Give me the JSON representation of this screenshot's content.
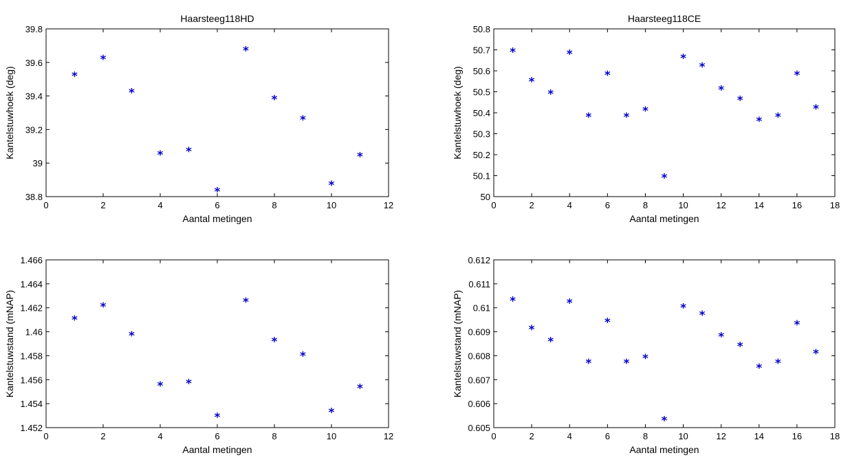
{
  "chart_data": [
    {
      "type": "scatter",
      "title": "Haarsteeg118HD",
      "xlabel": "Aantal metingen",
      "ylabel": "Kantelstuwhoek (deg)",
      "xlim": [
        0,
        12
      ],
      "ylim": [
        38.8,
        39.8
      ],
      "xticks": [
        0,
        2,
        4,
        6,
        8,
        10,
        12
      ],
      "yticks": [
        38.8,
        39,
        39.2,
        39.4,
        39.6,
        39.8
      ],
      "xtick_labels": [
        "0",
        "2",
        "4",
        "6",
        "8",
        "10",
        "12"
      ],
      "ytick_labels": [
        "38.8",
        "39",
        "39.2",
        "39.4",
        "39.6",
        "39.8"
      ],
      "marker": "*",
      "color": "#0000cc",
      "x": [
        1,
        2,
        3,
        4,
        5,
        6,
        7,
        8,
        9,
        10,
        11
      ],
      "y": [
        39.52,
        39.62,
        39.42,
        39.05,
        39.07,
        38.83,
        39.67,
        39.38,
        39.26,
        38.87,
        39.04
      ]
    },
    {
      "type": "scatter",
      "title": "Haarsteeg118CE",
      "xlabel": "Aantal metingen",
      "ylabel": "Kantelstuwhoek (deg)",
      "xlim": [
        0,
        18
      ],
      "ylim": [
        50,
        50.8
      ],
      "xticks": [
        0,
        2,
        4,
        6,
        8,
        10,
        12,
        14,
        16,
        18
      ],
      "yticks": [
        50,
        50.1,
        50.2,
        50.3,
        50.4,
        50.5,
        50.6,
        50.7,
        50.8
      ],
      "xtick_labels": [
        "0",
        "2",
        "4",
        "6",
        "8",
        "10",
        "12",
        "14",
        "16",
        "18"
      ],
      "ytick_labels": [
        "50",
        "50.1",
        "50.2",
        "50.3",
        "50.4",
        "50.5",
        "50.6",
        "50.7",
        "50.8"
      ],
      "marker": "*",
      "color": "#0000cc",
      "x": [
        1,
        2,
        3,
        4,
        5,
        6,
        7,
        8,
        9,
        10,
        11,
        12,
        13,
        14,
        15,
        16,
        17
      ],
      "y": [
        50.69,
        50.55,
        50.49,
        50.68,
        50.38,
        50.58,
        50.38,
        50.41,
        50.09,
        50.66,
        50.62,
        50.51,
        50.46,
        50.36,
        50.38,
        50.58,
        50.42
      ]
    },
    {
      "type": "scatter",
      "title": "",
      "xlabel": "Aantal metingen",
      "ylabel": "Kantelstuwstand (mNAP)",
      "xlim": [
        0,
        12
      ],
      "ylim": [
        1.452,
        1.466
      ],
      "xticks": [
        0,
        2,
        4,
        6,
        8,
        10,
        12
      ],
      "yticks": [
        1.452,
        1.454,
        1.456,
        1.458,
        1.46,
        1.462,
        1.464,
        1.466
      ],
      "xtick_labels": [
        "0",
        "2",
        "4",
        "6",
        "8",
        "10",
        "12"
      ],
      "ytick_labels": [
        "1.452",
        "1.454",
        "1.456",
        "1.458",
        "1.46",
        "1.462",
        "1.464",
        "1.466"
      ],
      "marker": "*",
      "color": "#0000cc",
      "x": [
        1,
        2,
        3,
        4,
        5,
        6,
        7,
        8,
        9,
        10,
        11
      ],
      "y": [
        1.461,
        1.4621,
        1.4597,
        1.4555,
        1.4557,
        1.4529,
        1.4625,
        1.4592,
        1.458,
        1.4533,
        1.4553
      ]
    },
    {
      "type": "scatter",
      "title": "",
      "xlabel": "Aantal metingen",
      "ylabel": "Kantelstuwstand (mNAP)",
      "xlim": [
        0,
        18
      ],
      "ylim": [
        0.605,
        0.612
      ],
      "xticks": [
        0,
        2,
        4,
        6,
        8,
        10,
        12,
        14,
        16,
        18
      ],
      "yticks": [
        0.605,
        0.606,
        0.607,
        0.608,
        0.609,
        0.61,
        0.611,
        0.612
      ],
      "xtick_labels": [
        "0",
        "2",
        "4",
        "6",
        "8",
        "10",
        "12",
        "14",
        "16",
        "18"
      ],
      "ytick_labels": [
        "0.605",
        "0.606",
        "0.607",
        "0.608",
        "0.609",
        "0.61",
        "0.611",
        "0.612"
      ],
      "marker": "*",
      "color": "#0000cc",
      "x": [
        1,
        2,
        3,
        4,
        5,
        6,
        7,
        8,
        9,
        10,
        11,
        12,
        13,
        14,
        15,
        16,
        17
      ],
      "y": [
        0.6103,
        0.6091,
        0.6086,
        0.6102,
        0.6077,
        0.6094,
        0.6077,
        0.6079,
        0.6053,
        0.61,
        0.6097,
        0.6088,
        0.6084,
        0.6075,
        0.6077,
        0.6093,
        0.6081
      ]
    }
  ]
}
